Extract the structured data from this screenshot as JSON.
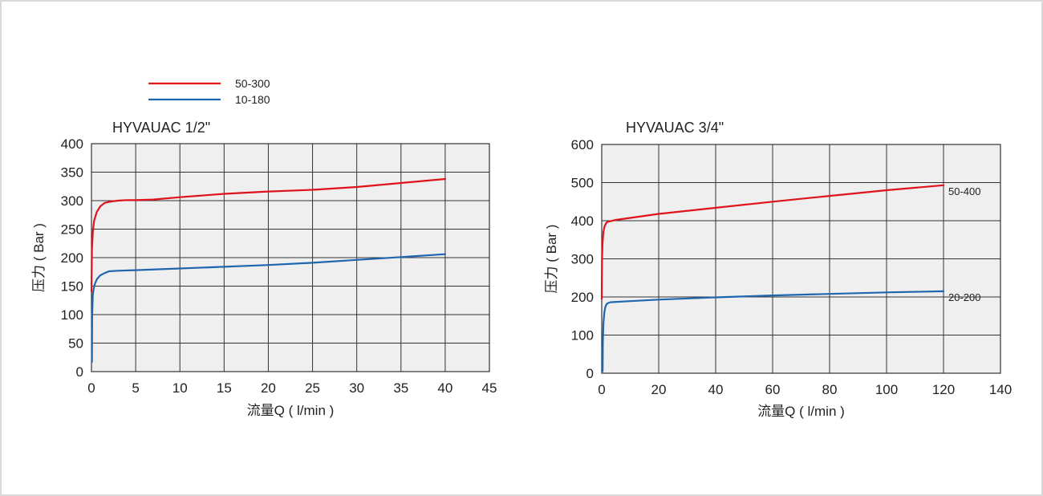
{
  "colors": {
    "red": "#e0121b",
    "blue": "#1f66b0",
    "grid": "#333333",
    "plot_bg": "#efefef"
  },
  "legend": [
    {
      "label": "50-300",
      "color": "#e0121b"
    },
    {
      "label": "10-180",
      "color": "#1f66b0"
    }
  ],
  "chart_data": [
    {
      "type": "line",
      "title": "HYVAUAC 1/2\"",
      "xlabel": "流量Q ( l/min )",
      "ylabel": "压力 ( Bar )",
      "xlim": [
        0,
        45
      ],
      "ylim": [
        0,
        400
      ],
      "xticks": [
        0,
        5,
        10,
        15,
        20,
        25,
        30,
        35,
        40,
        45
      ],
      "yticks": [
        0,
        50,
        100,
        150,
        200,
        250,
        300,
        350,
        400
      ],
      "grid": true,
      "legend_position": "top-left",
      "series": [
        {
          "name": "50-300",
          "color": "#e0121b",
          "x": [
            0,
            0.05,
            0.15,
            0.3,
            0.6,
            1.0,
            1.5,
            2,
            3,
            4,
            5,
            7,
            10,
            15,
            20,
            25,
            30,
            35,
            40
          ],
          "y": [
            140,
            215,
            245,
            265,
            280,
            290,
            296,
            298,
            300,
            301,
            301,
            302,
            306,
            312,
            316,
            319,
            324,
            331,
            338
          ]
        },
        {
          "name": "10-180",
          "color": "#1f66b0",
          "x": [
            0.05,
            0.08,
            0.15,
            0.3,
            0.6,
            1.0,
            1.5,
            2,
            3,
            5,
            10,
            15,
            20,
            25,
            30,
            35,
            40
          ],
          "y": [
            17,
            100,
            135,
            150,
            162,
            169,
            173,
            176,
            177,
            178,
            181,
            184,
            187,
            191,
            196,
            201,
            206
          ]
        }
      ],
      "end_labels": []
    },
    {
      "type": "line",
      "title": "HYVAUAC 3/4\"",
      "xlabel": "流量Q ( l/min )",
      "ylabel": "压力 ( Bar )",
      "xlim": [
        0,
        140
      ],
      "ylim": [
        0,
        600
      ],
      "xticks": [
        0,
        20,
        40,
        60,
        80,
        100,
        120,
        140
      ],
      "yticks": [
        0,
        100,
        200,
        300,
        400,
        500,
        600
      ],
      "grid": true,
      "series": [
        {
          "name": "50-400",
          "color": "#e0121b",
          "x": [
            0,
            0.02,
            0.1,
            0.3,
            0.6,
            1.0,
            1.5,
            2,
            5,
            20,
            40,
            60,
            80,
            100,
            120
          ],
          "y": [
            195,
            240,
            300,
            345,
            370,
            385,
            393,
            397,
            402,
            418,
            434,
            450,
            465,
            480,
            493
          ]
        },
        {
          "name": "20-200",
          "color": "#1f66b0",
          "x": [
            0.3,
            0.4,
            0.6,
            0.9,
            1.2,
            1.6,
            2.2,
            3,
            10,
            20,
            40,
            60,
            80,
            100,
            120
          ],
          "y": [
            5,
            80,
            130,
            158,
            172,
            180,
            184,
            186,
            189,
            193,
            199,
            204,
            208,
            212,
            215
          ]
        }
      ],
      "end_labels": [
        {
          "text": "50-400",
          "series": 0
        },
        {
          "text": "20-200",
          "series": 1
        }
      ]
    }
  ]
}
